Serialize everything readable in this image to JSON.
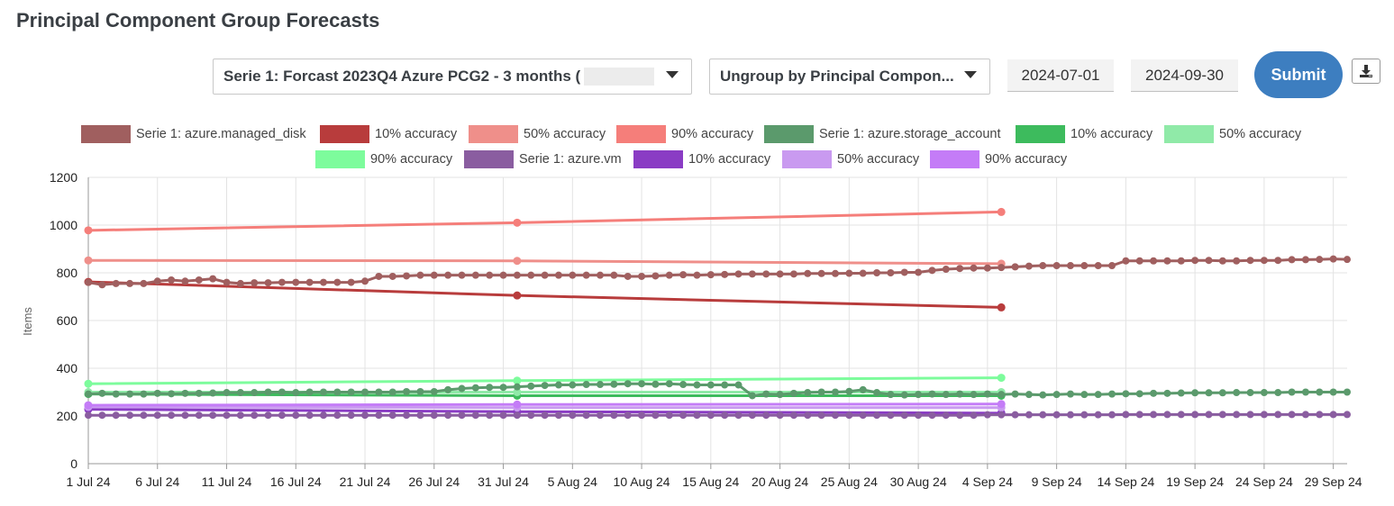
{
  "page": {
    "title": "Principal Component Group Forecasts"
  },
  "controls": {
    "series_select": {
      "value": "Serie 1: Forcast 2023Q4 Azure PCG2 - 3 months ("
    },
    "group_select": {
      "value": "Ungroup by Principal Compon..."
    },
    "start_date": "2024-07-01",
    "end_date": "2024-09-30",
    "submit_label": "Submit",
    "download_icon": "download-icon"
  },
  "chart_data": {
    "type": "line",
    "ylabel": "Items",
    "xlabel": "",
    "ylim": [
      0,
      1200
    ],
    "yticks": [
      0,
      200,
      400,
      600,
      800,
      1000,
      1200
    ],
    "x_start": "2024-07-01",
    "x_end": "2024-09-30",
    "xticks": [
      {
        "date": "2024-07-01",
        "label": "1 Jul 24"
      },
      {
        "date": "2024-07-06",
        "label": "6 Jul 24"
      },
      {
        "date": "2024-07-11",
        "label": "11 Jul 24"
      },
      {
        "date": "2024-07-16",
        "label": "16 Jul 24"
      },
      {
        "date": "2024-07-21",
        "label": "21 Jul 24"
      },
      {
        "date": "2024-07-26",
        "label": "26 Jul 24"
      },
      {
        "date": "2024-07-31",
        "label": "31 Jul 24"
      },
      {
        "date": "2024-08-05",
        "label": "5 Aug 24"
      },
      {
        "date": "2024-08-10",
        "label": "10 Aug 24"
      },
      {
        "date": "2024-08-15",
        "label": "15 Aug 24"
      },
      {
        "date": "2024-08-20",
        "label": "20 Aug 24"
      },
      {
        "date": "2024-08-25",
        "label": "25 Aug 24"
      },
      {
        "date": "2024-08-30",
        "label": "30 Aug 24"
      },
      {
        "date": "2024-09-04",
        "label": "4 Sep 24"
      },
      {
        "date": "2024-09-09",
        "label": "9 Sep 24"
      },
      {
        "date": "2024-09-14",
        "label": "14 Sep 24"
      },
      {
        "date": "2024-09-19",
        "label": "19 Sep 24"
      },
      {
        "date": "2024-09-24",
        "label": "24 Sep 24"
      },
      {
        "date": "2024-09-29",
        "label": "29 Sep 24"
      }
    ],
    "grid": true,
    "legend_position": "top-center",
    "series": [
      {
        "name": "Serie 1: azure.managed_disk",
        "color": "#a05f5f",
        "kind": "daily",
        "start": "2024-07-01",
        "values": [
          760,
          750,
          755,
          755,
          755,
          765,
          770,
          765,
          770,
          775,
          760,
          755,
          758,
          758,
          760,
          760,
          760,
          760,
          760,
          760,
          765,
          785,
          785,
          787,
          790,
          790,
          790,
          790,
          790,
          790,
          790,
          790,
          790,
          790,
          790,
          790,
          790,
          790,
          790,
          785,
          785,
          787,
          790,
          792,
          790,
          792,
          793,
          795,
          795,
          795,
          795,
          795,
          797,
          797,
          797,
          798,
          798,
          800,
          800,
          802,
          802,
          810,
          815,
          818,
          820,
          820,
          822,
          825,
          828,
          830,
          830,
          830,
          830,
          830,
          830,
          850,
          850,
          850,
          850,
          850,
          852,
          852,
          850,
          850,
          852,
          852,
          852,
          855,
          855,
          856,
          858,
          856
        ]
      },
      {
        "name": "10% accuracy",
        "color": "#b83c3c",
        "kind": "forecast",
        "dates": [
          "2024-07-01",
          "2024-08-01",
          "2024-09-05"
        ],
        "values": [
          762,
          705,
          655
        ]
      },
      {
        "name": "50% accuracy",
        "color": "#ef8f8a",
        "kind": "forecast",
        "dates": [
          "2024-07-01",
          "2024-08-01",
          "2024-09-05"
        ],
        "values": [
          852,
          850,
          838
        ]
      },
      {
        "name": "90% accuracy",
        "color": "#f57e7a",
        "kind": "forecast",
        "dates": [
          "2024-07-01",
          "2024-08-01",
          "2024-09-05"
        ],
        "values": [
          978,
          1010,
          1055
        ]
      },
      {
        "name": "Serie 1: azure.storage_account",
        "color": "#5b9a6c",
        "kind": "daily",
        "start": "2024-07-01",
        "values": [
          292,
          295,
          292,
          292,
          292,
          295,
          293,
          295,
          295,
          296,
          298,
          298,
          298,
          300,
          300,
          298,
          300,
          300,
          300,
          300,
          300,
          300,
          300,
          302,
          302,
          302,
          310,
          315,
          318,
          320,
          320,
          322,
          325,
          328,
          330,
          330,
          332,
          332,
          333,
          335,
          335,
          333,
          335,
          332,
          330,
          330,
          330,
          330,
          285,
          292,
          290,
          295,
          298,
          300,
          300,
          303,
          310,
          298,
          290,
          288,
          290,
          292,
          290,
          292,
          290,
          292,
          290,
          292,
          290,
          288,
          290,
          292,
          290,
          290,
          292,
          293,
          293,
          295,
          295,
          296,
          297,
          297,
          297,
          298,
          298,
          298,
          298,
          300,
          300,
          300,
          300,
          300
        ]
      },
      {
        "name": "10% accuracy",
        "color": "#3dbb5d",
        "kind": "forecast",
        "dates": [
          "2024-07-01",
          "2024-08-01",
          "2024-09-05"
        ],
        "values": [
          292,
          285,
          285
        ]
      },
      {
        "name": "50% accuracy",
        "color": "#90eaa8",
        "kind": "forecast",
        "dates": [
          "2024-07-01",
          "2024-08-01",
          "2024-09-05"
        ],
        "values": [
          300,
          300,
          300
        ]
      },
      {
        "name": "90% accuracy",
        "color": "#7dfc9c",
        "kind": "forecast",
        "dates": [
          "2024-07-01",
          "2024-08-01",
          "2024-09-05"
        ],
        "values": [
          335,
          348,
          360
        ]
      },
      {
        "name": "Serie 1: azure.vm",
        "color": "#8a5da0",
        "kind": "daily",
        "start": "2024-07-01",
        "values": [
          203,
          203,
          203,
          203,
          203,
          203,
          203,
          203,
          203,
          203,
          203,
          203,
          203,
          203,
          203,
          203,
          203,
          203,
          203,
          203,
          203,
          203,
          203,
          203,
          203,
          203,
          203,
          203,
          203,
          203,
          203,
          203,
          203,
          203,
          203,
          203,
          203,
          203,
          203,
          203,
          203,
          203,
          203,
          203,
          203,
          203,
          203,
          203,
          203,
          203,
          203,
          203,
          203,
          203,
          203,
          203,
          203,
          203,
          203,
          203,
          203,
          203,
          203,
          203,
          203,
          205,
          205,
          205,
          205,
          205,
          205,
          205,
          205,
          205,
          205,
          206,
          206,
          206,
          206,
          206,
          206,
          206,
          206,
          206,
          206,
          206,
          206,
          206,
          206,
          206,
          206,
          206
        ]
      },
      {
        "name": "10% accuracy",
        "color": "#8a3cc4",
        "kind": "forecast",
        "dates": [
          "2024-07-01",
          "2024-08-01",
          "2024-09-05"
        ],
        "values": [
          228,
          218,
          212
        ]
      },
      {
        "name": "50% accuracy",
        "color": "#c99af0",
        "kind": "forecast",
        "dates": [
          "2024-07-01",
          "2024-08-01",
          "2024-09-05"
        ],
        "values": [
          238,
          235,
          235
        ]
      },
      {
        "name": "90% accuracy",
        "color": "#c47cf7",
        "kind": "forecast",
        "dates": [
          "2024-07-01",
          "2024-08-01",
          "2024-09-05"
        ],
        "values": [
          245,
          248,
          250
        ]
      }
    ]
  }
}
